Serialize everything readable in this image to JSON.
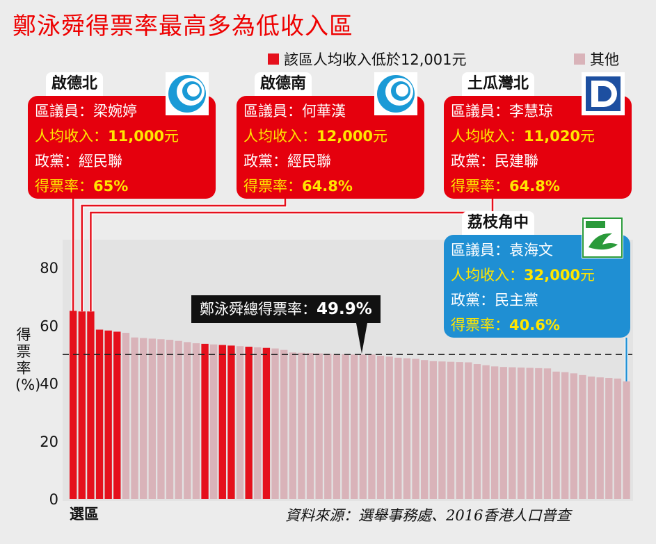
{
  "title": "鄭泳舜得票率最高多為低收入區",
  "legend": [
    {
      "label": "該區人均收入低於12,001元",
      "color": "#e5101c"
    },
    {
      "label": "其他",
      "color": "#d9b3b9"
    }
  ],
  "cards": [
    {
      "district": "啟德北",
      "rows": [
        {
          "label": "區議員",
          "value": "梁婉婷"
        },
        {
          "label": "人均收入",
          "value": "11,000",
          "unit": "元"
        },
        {
          "label": "政黨",
          "value": "經民聯"
        },
        {
          "label": "得票率",
          "value": "65%"
        }
      ],
      "logo": "roundel-logo"
    },
    {
      "district": "啟德南",
      "rows": [
        {
          "label": "區議員",
          "value": "何華漢"
        },
        {
          "label": "人均收入",
          "value": "12,000",
          "unit": "元"
        },
        {
          "label": "政黨",
          "value": "經民聯"
        },
        {
          "label": "得票率",
          "value": "64.8%"
        }
      ],
      "logo": "roundel-logo"
    },
    {
      "district": "土瓜灣北",
      "rows": [
        {
          "label": "區議員",
          "value": "李慧琼"
        },
        {
          "label": "人均收入",
          "value": "11,020",
          "unit": "元"
        },
        {
          "label": "政黨",
          "value": "民建聯"
        },
        {
          "label": "得票率",
          "value": "64.8%"
        }
      ],
      "logo": "dab-logo"
    },
    {
      "district": "荔枝角中",
      "rows": [
        {
          "label": "區議員",
          "value": "袁海文"
        },
        {
          "label": "人均收入",
          "value": "32,000",
          "unit": "元"
        },
        {
          "label": "政黨",
          "value": "民主黨"
        },
        {
          "label": "得票率",
          "value": "40.6%"
        }
      ],
      "logo": "dove-logo"
    }
  ],
  "annotation": {
    "label": "鄭泳舜總得票率：",
    "value": "49.9%"
  },
  "source": "資料來源：選舉事務處、2016香港人口普查",
  "chart_data": {
    "type": "bar",
    "xlabel": "選區",
    "ylabel": "得票率(%)",
    "ylim": [
      0,
      85
    ],
    "yticks": [
      0,
      20,
      40,
      60,
      80
    ],
    "reference_line": 49.9,
    "colors": {
      "low_income": "#e5101c",
      "other": "#d9b3b9"
    },
    "values": [
      65,
      64.8,
      64.8,
      58.5,
      58.2,
      57.8,
      57.4,
      55.8,
      55.6,
      55.4,
      55.2,
      55.0,
      54.6,
      54.2,
      53.8,
      53.6,
      53.4,
      53.2,
      53.0,
      52.8,
      52.6,
      52.4,
      52.2,
      52.0,
      51.5,
      50.6,
      50.5,
      50.4,
      50.3,
      50.2,
      50.1,
      50.0,
      49.9,
      49.9,
      49.9,
      49.5,
      49.2,
      48.8,
      48.6,
      48.4,
      48.0,
      47.6,
      47.5,
      47.4,
      47.3,
      47.2,
      46.6,
      46.2,
      45.8,
      45.6,
      45.5,
      45.4,
      45.3,
      45.2,
      45.1,
      44.0,
      43.8,
      43.4,
      42.8,
      42.3,
      42.0,
      41.8,
      41.6,
      40.6
    ],
    "highlight": [
      true,
      true,
      true,
      true,
      true,
      true,
      false,
      false,
      false,
      false,
      false,
      false,
      false,
      false,
      false,
      true,
      false,
      true,
      true,
      false,
      true,
      false,
      true,
      false,
      false,
      false,
      false,
      false,
      false,
      false,
      false,
      false,
      false,
      false,
      false,
      false,
      false,
      false,
      false,
      false,
      false,
      false,
      false,
      false,
      false,
      false,
      false,
      false,
      false,
      false,
      false,
      false,
      false,
      false,
      false,
      false,
      false,
      false,
      false,
      false,
      false,
      false,
      false,
      false
    ]
  }
}
